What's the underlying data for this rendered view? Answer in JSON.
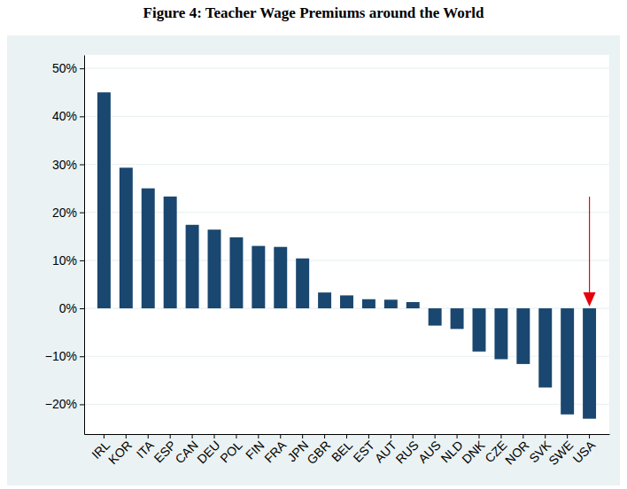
{
  "chart_data": {
    "type": "bar",
    "title": "Figure 4: Teacher Wage Premiums around the World",
    "categories": [
      "IRL",
      "KOR",
      "ITA",
      "ESP",
      "CAN",
      "DEU",
      "POL",
      "FIN",
      "FRA",
      "JPN",
      "GBR",
      "BEL",
      "EST",
      "AUT",
      "RUS",
      "AUS",
      "NLD",
      "DNK",
      "CZE",
      "NOR",
      "SVK",
      "SWE",
      "USA"
    ],
    "values": [
      45,
      29.3,
      25,
      23.3,
      17.4,
      16.4,
      14.8,
      13,
      12.8,
      10.4,
      3.3,
      2.7,
      1.9,
      1.8,
      1.3,
      -3.6,
      -4.3,
      -9,
      -10.6,
      -11.6,
      -16.5,
      -22.1,
      -23
    ],
    "color": "#1a476f",
    "ylim": [
      -26.2,
      52.8
    ],
    "yticks": [
      {
        "value": -20,
        "label": "−20%"
      },
      {
        "value": -10,
        "label": "−10%"
      },
      {
        "value": 0,
        "label": "0%"
      },
      {
        "value": 10,
        "label": "10%"
      },
      {
        "value": 20,
        "label": "20%"
      },
      {
        "value": 30,
        "label": "30%"
      },
      {
        "value": 40,
        "label": "40%"
      },
      {
        "value": 50,
        "label": "50%"
      }
    ],
    "grid": true
  }
}
